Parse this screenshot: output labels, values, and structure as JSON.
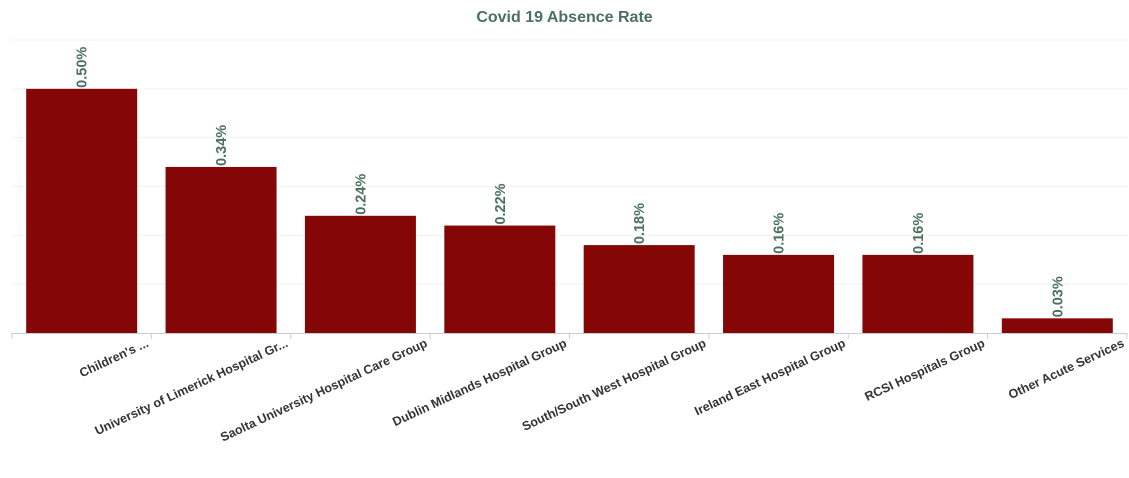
{
  "chart_data": {
    "type": "bar",
    "title": "Covid 19 Absence Rate",
    "categories": [
      "Children's ...",
      "University of Limerick Hospital Gr...",
      "Saolta University Hospital Care Group",
      "Dublin Midlands Hospital Group",
      "South/South West Hospital Group",
      "Ireland East Hospital Group",
      "RCSI Hospitals Group",
      "Other Acute Services"
    ],
    "values": [
      0.005,
      0.0034,
      0.0024,
      0.0022,
      0.0018,
      0.0016,
      0.0016,
      0.0003
    ],
    "value_labels": [
      "0.50%",
      "0.34%",
      "0.24%",
      "0.22%",
      "0.18%",
      "0.16%",
      "0.16%",
      "0.03%"
    ],
    "xlabel": "",
    "ylabel": "",
    "ylim": [
      0,
      0.006
    ],
    "grid": true,
    "bar_color": "#850606",
    "label_color": "#4a7060"
  }
}
